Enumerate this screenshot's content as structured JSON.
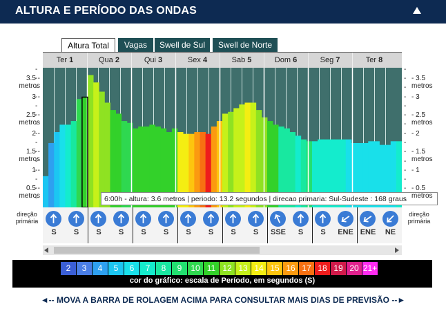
{
  "header": {
    "title": "ALTURA E PERÍODO DAS ONDAS"
  },
  "tabs": [
    {
      "label": "Altura Total",
      "active": true
    },
    {
      "label": "Vagas",
      "active": false
    },
    {
      "label": "Swell de Sul",
      "active": false
    },
    {
      "label": "Swell de Norte",
      "active": false
    }
  ],
  "days": [
    {
      "name": "Ter",
      "num": "1"
    },
    {
      "name": "Qua",
      "num": "2"
    },
    {
      "name": "Qui",
      "num": "3"
    },
    {
      "name": "Sex",
      "num": "4"
    },
    {
      "name": "Sab",
      "num": "5"
    },
    {
      "name": "Dom",
      "num": "6"
    },
    {
      "name": "Seg",
      "num": "7"
    },
    {
      "name": "Ter",
      "num": "8"
    }
  ],
  "y_axis": {
    "unit": "metros",
    "ticks": [
      "3.5",
      "3",
      "2.5",
      "2",
      "1.5",
      "1",
      "0.5"
    ]
  },
  "tooltip": "6:00h - altura: 3.6 metros | periodo: 13.2 segundos | direcao primaria: Sul-Sudeste : 168 graus",
  "direction": {
    "side_label_1": "direção",
    "side_label_2": "primária",
    "cells": [
      {
        "label": "S",
        "deg": 0
      },
      {
        "label": "S",
        "deg": 0
      },
      {
        "label": "S",
        "deg": 0
      },
      {
        "label": "S",
        "deg": 0
      },
      {
        "label": "S",
        "deg": 0
      },
      {
        "label": "S",
        "deg": 0
      },
      {
        "label": "S",
        "deg": 0
      },
      {
        "label": "S",
        "deg": 0
      },
      {
        "label": "S",
        "deg": 0
      },
      {
        "label": "S",
        "deg": 0
      },
      {
        "label": "SSE",
        "deg": -25
      },
      {
        "label": "S",
        "deg": 0
      },
      {
        "label": "S",
        "deg": 0
      },
      {
        "label": "ENE",
        "deg": 235
      },
      {
        "label": "ENE",
        "deg": 235
      },
      {
        "label": "NE",
        "deg": 225
      }
    ]
  },
  "legend": {
    "caption": "cor do gráfico: escala de Período, em segundos (S)",
    "scale": [
      {
        "label": "2",
        "color": "#3b5fd6"
      },
      {
        "label": "3",
        "color": "#4a7ee6"
      },
      {
        "label": "4",
        "color": "#2ea0f0"
      },
      {
        "label": "5",
        "color": "#1cc6f2"
      },
      {
        "label": "6",
        "color": "#19e0ea"
      },
      {
        "label": "7",
        "color": "#14eccd"
      },
      {
        "label": "8",
        "color": "#18e8a0"
      },
      {
        "label": "9",
        "color": "#22e070"
      },
      {
        "label": "10",
        "color": "#2fd850"
      },
      {
        "label": "11",
        "color": "#33d12a"
      },
      {
        "label": "12",
        "color": "#8fe222"
      },
      {
        "label": "13",
        "color": "#c6f11a"
      },
      {
        "label": "14",
        "color": "#f4ee12"
      },
      {
        "label": "15",
        "color": "#fdc50e"
      },
      {
        "label": "16",
        "color": "#fb9a10"
      },
      {
        "label": "17",
        "color": "#f77012"
      },
      {
        "label": "18",
        "color": "#ee1c1c"
      },
      {
        "label": "19",
        "color": "#d11a4a"
      },
      {
        "label": "20",
        "color": "#e0218e"
      },
      {
        "label": "21+",
        "color": "#ff2cf0"
      }
    ]
  },
  "footer": "◄--  MOVA A BARRA DE ROLAGEM ACIMA PARA CONSULTAR MAIS DIAS DE PREVISÃO  --►",
  "chart_data": {
    "type": "bar",
    "title": "Altura Total",
    "ylabel": "metros",
    "ylim": [
      0,
      3.8
    ],
    "highlight_index": 7,
    "series": [
      {
        "name": "altura (m)",
        "values": [
          0.85,
          1.75,
          2.05,
          2.25,
          2.25,
          2.35,
          2.95,
          3.0,
          3.6,
          3.4,
          3.15,
          2.85,
          2.65,
          2.55,
          2.35,
          2.3,
          2.15,
          2.2,
          2.2,
          2.25,
          2.2,
          2.15,
          2.05,
          2.15,
          2.05,
          2.0,
          2.0,
          2.05,
          2.05,
          2.0,
          2.2,
          2.35,
          2.55,
          2.6,
          2.7,
          2.8,
          2.85,
          2.85,
          2.65,
          2.45,
          2.35,
          2.25,
          2.2,
          2.15,
          2.05,
          1.95,
          1.85,
          1.8,
          1.8,
          1.85,
          1.85,
          1.85,
          1.85,
          1.85,
          1.85,
          1.75,
          1.75,
          1.75,
          1.8,
          1.8,
          1.7,
          1.7,
          1.8,
          1.8
        ],
        "periods": [
          5,
          4,
          5,
          6,
          7,
          8,
          10,
          11,
          12,
          13,
          12,
          12,
          11,
          11,
          10,
          10,
          11,
          11,
          11,
          11,
          11,
          11,
          11,
          11,
          14,
          14,
          15,
          16,
          17,
          18,
          16,
          15,
          13,
          12,
          13,
          13,
          14,
          13,
          12,
          12,
          11,
          11,
          8,
          8,
          8,
          7,
          8,
          9,
          7,
          7,
          7,
          7,
          7,
          7,
          6,
          6,
          6,
          6,
          6,
          6,
          6,
          6,
          6,
          7
        ]
      }
    ]
  }
}
